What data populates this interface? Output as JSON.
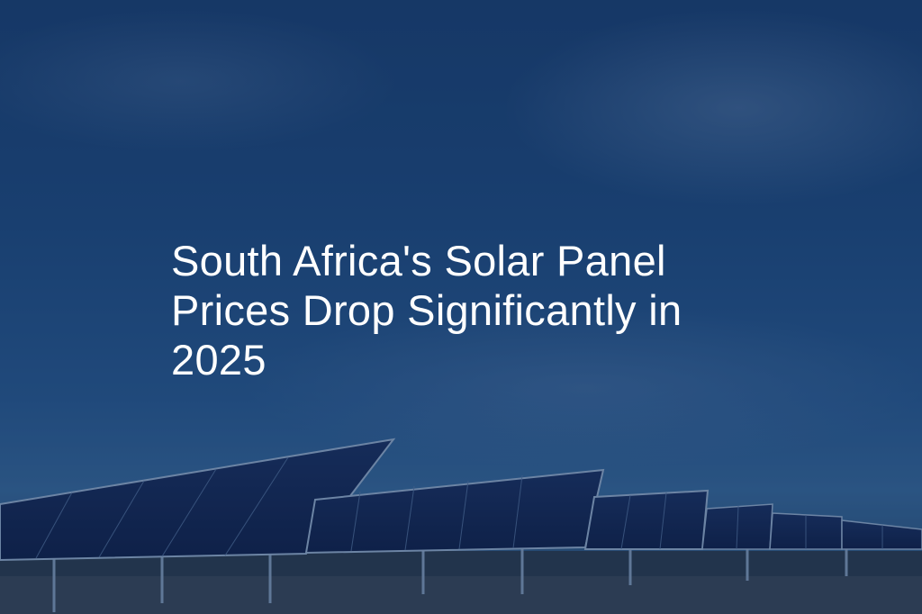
{
  "title": "South Africa's Solar Panel Prices Drop Significantly in 2025"
}
